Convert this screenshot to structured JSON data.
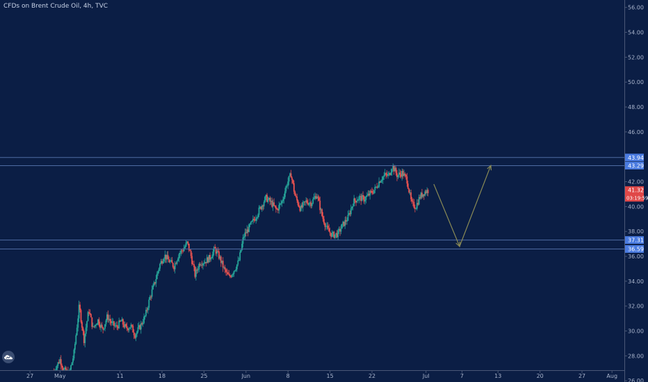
{
  "header": {
    "title": "CFDs on Brent Crude Oil, 4h, TVC"
  },
  "colors": {
    "background": "#0b1e45",
    "up": "#26a69a",
    "down": "#ef5350",
    "level_line": "#4f6ba3",
    "level_label": "#4a7be0",
    "price_label": "#e04848",
    "arrow": "#8a8a55",
    "axis_text": "#a9b4cc",
    "axis_border": "#4a5877"
  },
  "chart_data": {
    "type": "candlestick",
    "title": "CFDs on Brent Crude Oil, 4h, TVC",
    "y_ticks": [
      "56.00",
      "54.00",
      "52.00",
      "50.00",
      "48.00",
      "46.00",
      "44.00",
      "42.00",
      "40.00",
      "38.00",
      "36.00",
      "34.00",
      "32.00",
      "30.00",
      "28.00",
      "26.00"
    ],
    "y_tick_values": [
      56,
      54,
      52,
      50,
      48,
      46,
      44,
      42,
      40,
      38,
      36,
      34,
      32,
      30,
      28,
      26
    ],
    "ylim": [
      25.9,
      56.6
    ],
    "x_ticks": [
      {
        "label": "27",
        "day": -4
      },
      {
        "label": "May",
        "day": 1
      },
      {
        "label": "11",
        "day": 11
      },
      {
        "label": "18",
        "day": 18
      },
      {
        "label": "25",
        "day": 25
      },
      {
        "label": "Jun",
        "day": 32
      },
      {
        "label": "8",
        "day": 39
      },
      {
        "label": "15",
        "day": 46
      },
      {
        "label": "22",
        "day": 53
      },
      {
        "label": "Jul",
        "day": 62
      },
      {
        "label": "7",
        "day": 68
      },
      {
        "label": "13",
        "day": 74
      },
      {
        "label": "20",
        "day": 81
      },
      {
        "label": "27",
        "day": 88
      },
      {
        "label": "Aug",
        "day": 93
      }
    ],
    "xlim": [
      -9,
      99
    ],
    "price_path": [
      [
        0.0,
        26.8
      ],
      [
        1.0,
        27.7
      ],
      [
        1.6,
        26.9
      ],
      [
        2.5,
        26.5
      ],
      [
        3.3,
        28.1
      ],
      [
        4.2,
        32.0
      ],
      [
        5.0,
        29.3
      ],
      [
        5.8,
        31.7
      ],
      [
        6.5,
        30.2
      ],
      [
        7.3,
        30.9
      ],
      [
        8.1,
        30.1
      ],
      [
        8.9,
        31.2
      ],
      [
        9.6,
        30.6
      ],
      [
        10.4,
        30.3
      ],
      [
        11.2,
        30.8
      ],
      [
        12.0,
        30.2
      ],
      [
        12.8,
        30.4
      ],
      [
        13.5,
        29.7
      ],
      [
        14.4,
        30.4
      ],
      [
        15.2,
        31.2
      ],
      [
        16.0,
        32.7
      ],
      [
        16.8,
        33.9
      ],
      [
        17.6,
        35.3
      ],
      [
        18.4,
        36.1
      ],
      [
        19.2,
        35.6
      ],
      [
        20.0,
        35.2
      ],
      [
        20.8,
        36.2
      ],
      [
        21.6,
        36.6
      ],
      [
        22.2,
        37.1
      ],
      [
        22.8,
        36.1
      ],
      [
        23.5,
        34.5
      ],
      [
        24.3,
        35.5
      ],
      [
        25.2,
        35.6
      ],
      [
        26.0,
        35.9
      ],
      [
        26.8,
        36.6
      ],
      [
        27.6,
        35.9
      ],
      [
        28.4,
        34.9
      ],
      [
        29.2,
        34.3
      ],
      [
        30.0,
        34.9
      ],
      [
        30.8,
        35.6
      ],
      [
        31.6,
        37.6
      ],
      [
        32.5,
        38.3
      ],
      [
        33.4,
        39.0
      ],
      [
        34.4,
        39.9
      ],
      [
        35.3,
        40.7
      ],
      [
        36.2,
        40.3
      ],
      [
        37.1,
        39.7
      ],
      [
        38.0,
        40.4
      ],
      [
        38.8,
        41.8
      ],
      [
        39.5,
        42.6
      ],
      [
        40.2,
        40.8
      ],
      [
        41.1,
        39.8
      ],
      [
        42.0,
        40.4
      ],
      [
        42.9,
        40.3
      ],
      [
        43.8,
        41.0
      ],
      [
        44.7,
        39.2
      ],
      [
        45.6,
        38.1
      ],
      [
        46.4,
        37.7
      ],
      [
        47.3,
        37.8
      ],
      [
        48.1,
        38.5
      ],
      [
        49.0,
        39.1
      ],
      [
        49.9,
        40.4
      ],
      [
        50.8,
        40.7
      ],
      [
        51.7,
        40.6
      ],
      [
        52.6,
        41.0
      ],
      [
        53.5,
        41.4
      ],
      [
        54.4,
        42.2
      ],
      [
        55.1,
        42.5
      ],
      [
        55.8,
        42.5
      ],
      [
        56.4,
        43.3
      ],
      [
        57.2,
        42.5
      ],
      [
        58.0,
        42.7
      ],
      [
        58.8,
        42.2
      ],
      [
        59.6,
        40.2
      ],
      [
        60.3,
        40.0
      ],
      [
        61.0,
        40.8
      ],
      [
        61.8,
        41.2
      ],
      [
        62.4,
        41.3
      ]
    ],
    "levels": [
      {
        "value": 43.94,
        "label": "43.94"
      },
      {
        "value": 43.29,
        "label": "43.29"
      },
      {
        "value": 37.31,
        "label": "37.31"
      },
      {
        "value": 36.59,
        "label": "36.59"
      }
    ],
    "current_price": {
      "value": 41.32,
      "label": "41.32",
      "countdown": "03:19:59"
    },
    "projection": [
      {
        "day": 63.3,
        "price": 41.8
      },
      {
        "day": 67.6,
        "price": 36.8
      },
      {
        "day": 72.8,
        "price": 43.3
      }
    ],
    "grid": false
  }
}
